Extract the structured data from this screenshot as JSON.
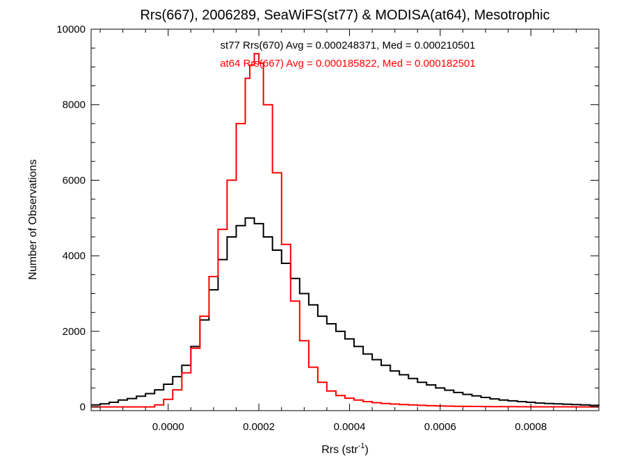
{
  "chart_data": {
    "type": "line",
    "style": "step",
    "title": "Rrs(667), 2006289, SeaWiFS(st77) & MODISA(at64), Mesotrophic",
    "xlabel": "Rrs (str",
    "xlabel_superscript": "-1",
    "xlabel_suffix": ")",
    "ylabel": "Number of Observations",
    "xlim": [
      -0.00017,
      0.00095
    ],
    "ylim": [
      -100,
      10000
    ],
    "x_ticks": [
      0.0,
      0.0002,
      0.0004,
      0.0006,
      0.0008
    ],
    "x_tick_labels": [
      "0.0000",
      "0.0002",
      "0.0004",
      "0.0006",
      "0.0008"
    ],
    "y_ticks": [
      0,
      2000,
      4000,
      6000,
      8000,
      10000
    ],
    "y_tick_labels": [
      "0",
      "2000",
      "4000",
      "6000",
      "8000",
      "10000"
    ],
    "grid": false,
    "annotations": [
      {
        "text": "st77 Rrs(670) Avg = 0.000248371, Med = 0.000210501",
        "color": "#000000"
      },
      {
        "text": "at64 Rrs(667) Avg = 0.000185822, Med = 0.000182501",
        "color": "#ff0000"
      }
    ],
    "series": [
      {
        "label": "st77",
        "color": "#000000",
        "x": [
          -0.00017,
          -0.00015,
          -0.00013,
          -0.00011,
          -9e-05,
          -7e-05,
          -5e-05,
          -3e-05,
          -1e-05,
          1e-05,
          3e-05,
          5e-05,
          7e-05,
          9e-05,
          0.00011,
          0.00013,
          0.00015,
          0.00017,
          0.00019,
          0.00021,
          0.00023,
          0.00025,
          0.00027,
          0.00029,
          0.00031,
          0.00033,
          0.00035,
          0.00037,
          0.00039,
          0.00041,
          0.00043,
          0.00045,
          0.00047,
          0.00049,
          0.00051,
          0.00053,
          0.00055,
          0.00057,
          0.00059,
          0.00061,
          0.00063,
          0.00065,
          0.00067,
          0.00069,
          0.00071,
          0.00073,
          0.00075,
          0.00077,
          0.00079,
          0.00081,
          0.00083,
          0.00085,
          0.00087,
          0.00089,
          0.00091,
          0.00093,
          0.00095
        ],
        "values": [
          50,
          80,
          120,
          180,
          220,
          280,
          350,
          450,
          600,
          800,
          1100,
          1600,
          2300,
          3100,
          3900,
          4500,
          4800,
          5000,
          4850,
          4500,
          4150,
          3800,
          3400,
          3000,
          2700,
          2400,
          2200,
          2000,
          1800,
          1600,
          1400,
          1250,
          1100,
          950,
          850,
          750,
          650,
          580,
          500,
          440,
          380,
          330,
          290,
          250,
          210,
          180,
          160,
          140,
          120,
          100,
          90,
          80,
          70,
          60,
          50,
          40,
          30
        ]
      },
      {
        "label": "at64",
        "color": "#ff0000",
        "x": [
          -0.00017,
          -0.00015,
          -0.00013,
          -0.00011,
          -9e-05,
          -7e-05,
          -5e-05,
          -3e-05,
          -1e-05,
          1e-05,
          3e-05,
          5e-05,
          7e-05,
          9e-05,
          0.00011,
          0.00013,
          0.00015,
          0.00017,
          0.00018,
          0.00019,
          0.0002,
          0.00021,
          0.00023,
          0.00025,
          0.00027,
          0.00029,
          0.00031,
          0.00033,
          0.00035,
          0.00037,
          0.00039,
          0.00041,
          0.00043,
          0.00045,
          0.00047,
          0.00049,
          0.00051,
          0.00053,
          0.00055,
          0.00057,
          0.00059,
          0.00061,
          0.00063,
          0.00065,
          0.00067,
          0.00069,
          0.00071,
          0.00073,
          0.00075,
          0.00077,
          0.00079,
          0.00081,
          0.00083,
          0.00085,
          0.00087,
          0.00089,
          0.00091,
          0.00093,
          0.00095
        ],
        "values": [
          0,
          0,
          0,
          0,
          0,
          0,
          0,
          50,
          200,
          450,
          900,
          1550,
          2400,
          3450,
          4700,
          6000,
          7500,
          8700,
          9050,
          9350,
          9100,
          8000,
          6200,
          4300,
          2800,
          1750,
          1050,
          650,
          420,
          300,
          230,
          180,
          140,
          110,
          90,
          75,
          60,
          50,
          40,
          30,
          25,
          20,
          15,
          12,
          10,
          8,
          6,
          5,
          4,
          3,
          2,
          2,
          1,
          1,
          1,
          0,
          0,
          0,
          0
        ]
      }
    ]
  }
}
